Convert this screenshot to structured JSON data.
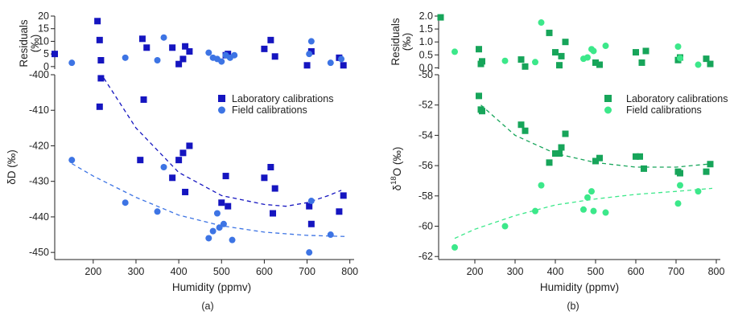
{
  "colors": {
    "lab_d": "#1515c0",
    "field_d": "#3d74e4",
    "lab_o": "#17a55a",
    "field_o": "#3ce88a",
    "axis": "#222222"
  },
  "figure": {
    "x_axis_label": "Humidity (ppmv)",
    "panel_a_label": "(a)",
    "panel_b_label": "(b)",
    "residuals_label_line1": "Residuals",
    "residuals_label_line2": "(‰)",
    "legend_lab": "Laboratory calibrations",
    "legend_field": "Field calibrations",
    "dD_label": "δD (‰)",
    "d18O_label_prefix": "δ",
    "d18O_label_sup": "18",
    "d18O_label_suffix": "O (‰)"
  },
  "chart_data": [
    {
      "id": "a-residuals",
      "type": "scatter",
      "ylabel": "Residuals (‰)",
      "xlim": [
        110,
        810
      ],
      "ylim": [
        -1,
        20
      ],
      "yticks": [
        0,
        5,
        10,
        15,
        20
      ],
      "series": [
        {
          "name": "Laboratory calibrations",
          "marker": "square",
          "x": [
            110,
            210,
            215,
            218,
            315,
            325,
            385,
            400,
            410,
            415,
            425,
            510,
            515,
            600,
            615,
            625,
            700,
            710,
            775,
            785
          ],
          "y": [
            5,
            18,
            10.5,
            2.5,
            11,
            7.5,
            7.5,
            1,
            3,
            8,
            6,
            4.5,
            5,
            7,
            10.5,
            4,
            0.5,
            6,
            3.5,
            0.5
          ]
        },
        {
          "name": "Field calibrations",
          "marker": "circle",
          "x": [
            150,
            275,
            350,
            365,
            470,
            480,
            490,
            500,
            510,
            520,
            530,
            705,
            710,
            755,
            780
          ],
          "y": [
            1.5,
            3.5,
            2.5,
            11.5,
            5.5,
            3.5,
            3,
            2,
            4.5,
            3.5,
            4.5,
            5,
            10,
            1.5,
            3
          ]
        }
      ]
    },
    {
      "id": "a-main",
      "type": "scatter",
      "xlabel": "Humidity (ppmv)",
      "ylabel": "δD (‰)",
      "xlim": [
        110,
        810
      ],
      "ylim": [
        -452,
        -400
      ],
      "yticks": [
        -450,
        -440,
        -430,
        -420,
        -410,
        -400
      ],
      "xticks": [
        200,
        300,
        400,
        500,
        600,
        700,
        800
      ],
      "legend": "top-right",
      "series": [
        {
          "name": "Laboratory calibrations",
          "marker": "square",
          "x": [
            215,
            218,
            310,
            318,
            385,
            400,
            410,
            415,
            425,
            500,
            510,
            515,
            600,
            615,
            620,
            625,
            705,
            710,
            775,
            785
          ],
          "y": [
            -409,
            -401,
            -424,
            -407,
            -429,
            -424,
            -422,
            -433,
            -420,
            -436,
            -428.5,
            -437,
            -429,
            -426,
            -439,
            -432,
            -437,
            -442,
            -438.5,
            -434
          ],
          "fit": {
            "x": [
              225,
              300,
              400,
              500,
              600,
              650,
              700,
              750,
              780
            ],
            "y": [
              -401,
              -415,
              -427.5,
              -434,
              -436.5,
              -437,
              -436,
              -434,
              -432.5
            ]
          }
        },
        {
          "name": "Field calibrations",
          "marker": "circle",
          "x": [
            150,
            275,
            350,
            365,
            470,
            480,
            490,
            495,
            505,
            525,
            705,
            710,
            755
          ],
          "y": [
            -424,
            -436,
            -438.5,
            -426,
            -446,
            -444,
            -439,
            -443,
            -442,
            -446.5,
            -450,
            -435.5,
            -445
          ],
          "fit": {
            "x": [
              150,
              200,
              300,
              400,
              500,
              600,
              700,
              790
            ],
            "y": [
              -425,
              -428.5,
              -434.5,
              -439.5,
              -442.5,
              -444.3,
              -445.2,
              -445.5
            ]
          }
        }
      ]
    },
    {
      "id": "b-residuals",
      "type": "scatter",
      "ylabel": "Residuals (‰)",
      "xlim": [
        110,
        810
      ],
      "ylim": [
        -0.05,
        2.0
      ],
      "yticks": [
        0.0,
        0.5,
        1.0,
        1.5,
        2.0
      ],
      "series": [
        {
          "name": "Laboratory calibrations",
          "marker": "square",
          "x": [
            115,
            210,
            215,
            218,
            315,
            325,
            385,
            400,
            410,
            415,
            425,
            500,
            510,
            600,
            615,
            625,
            705,
            710,
            775,
            785
          ],
          "y": [
            1.95,
            0.72,
            0.15,
            0.25,
            0.32,
            0.05,
            1.35,
            0.6,
            0.1,
            0.45,
            1.0,
            0.2,
            0.12,
            0.6,
            0.2,
            0.65,
            0.3,
            0.4,
            0.35,
            0.15
          ],
          "fit": null
        },
        {
          "name": "Field calibrations",
          "marker": "circle",
          "x": [
            150,
            275,
            350,
            365,
            470,
            480,
            490,
            495,
            525,
            705,
            710,
            755
          ],
          "y": [
            0.62,
            0.27,
            0.22,
            1.75,
            0.35,
            0.4,
            0.72,
            0.65,
            0.85,
            0.82,
            0.37,
            0.12
          ]
        }
      ]
    },
    {
      "id": "b-main",
      "type": "scatter",
      "xlabel": "Humidity (ppmv)",
      "ylabel": "δ18O (‰)",
      "xlim": [
        110,
        810
      ],
      "ylim": [
        -62.2,
        -50
      ],
      "yticks": [
        -62,
        -60,
        -58,
        -56,
        -54,
        -52,
        -50
      ],
      "xticks": [
        200,
        300,
        400,
        500,
        600,
        700,
        800
      ],
      "legend": "top-right",
      "series": [
        {
          "name": "Laboratory calibrations",
          "marker": "square",
          "x": [
            210,
            215,
            218,
            315,
            325,
            385,
            400,
            410,
            415,
            425,
            500,
            510,
            600,
            610,
            620,
            705,
            710,
            775,
            785
          ],
          "y": [
            -51.4,
            -52.3,
            -52.4,
            -53.3,
            -53.7,
            -55.8,
            -55.2,
            -55.2,
            -54.8,
            -53.9,
            -55.7,
            -55.5,
            -55.4,
            -55.4,
            -56.2,
            -56.4,
            -56.5,
            -56.4,
            -55.9
          ],
          "fit": {
            "x": [
              215,
              300,
              400,
              500,
              600,
              700,
              780
            ],
            "y": [
              -52.0,
              -54.0,
              -55.2,
              -55.8,
              -56.1,
              -56.1,
              -55.9
            ]
          }
        },
        {
          "name": "Field calibrations",
          "marker": "circle",
          "x": [
            150,
            275,
            350,
            365,
            470,
            480,
            490,
            495,
            525,
            705,
            710,
            755
          ],
          "y": [
            -61.4,
            -60.0,
            -59.0,
            -57.3,
            -58.9,
            -58.1,
            -57.7,
            -59.0,
            -59.1,
            -58.5,
            -57.3,
            -57.7
          ],
          "fit": {
            "x": [
              150,
              200,
              300,
              400,
              500,
              600,
              700,
              790
            ],
            "y": [
              -60.8,
              -60.2,
              -59.3,
              -58.6,
              -58.2,
              -57.9,
              -57.7,
              -57.5
            ]
          }
        }
      ]
    }
  ]
}
